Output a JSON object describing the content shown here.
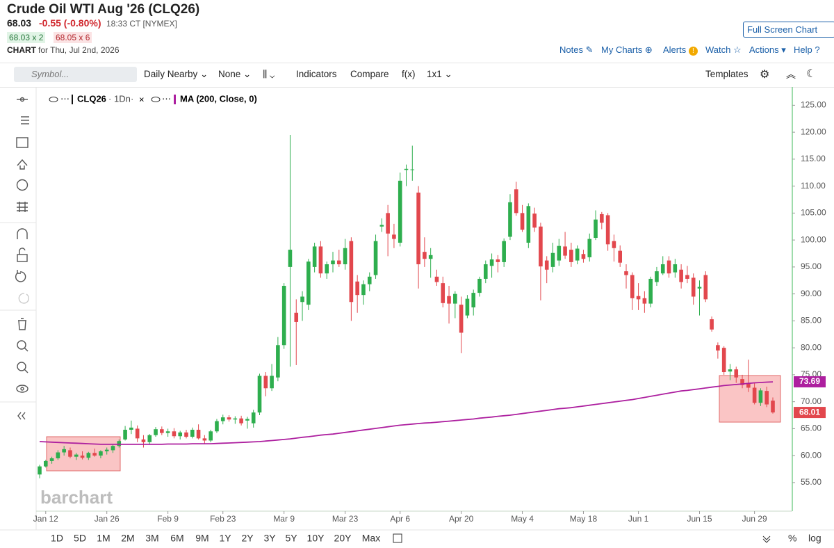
{
  "header": {
    "title": "Crude Oil WTI Aug '26 (CLQ26)",
    "last": "68.03",
    "change": "-0.55 (-0.80%)",
    "time": "18:33 CT [NYMEX]",
    "bid": "68.03 x 2",
    "ask": "68.05 x 6",
    "chart_label": "CHART",
    "chart_date": "for Thu, Jul 2nd, 2026"
  },
  "links": {
    "full_screen": "Full Screen Chart",
    "notes": "Notes",
    "my_charts": "My Charts",
    "alerts": "Alerts",
    "watch": "Watch",
    "actions": "Actions",
    "help": "Help"
  },
  "toolbar": {
    "symbol_placeholder": "Symbol...",
    "items": [
      "Daily Nearby",
      "None",
      "Indicators",
      "Compare",
      "f(x)",
      "1x1"
    ],
    "templates": "Templates"
  },
  "ranges": [
    "1D",
    "5D",
    "1M",
    "2M",
    "3M",
    "6M",
    "9M",
    "1Y",
    "2Y",
    "3Y",
    "5Y",
    "10Y",
    "20Y",
    "Max"
  ],
  "percent": "%",
  "log": "log",
  "watermark": "barchart",
  "chart_data": {
    "type": "candlestick",
    "categories": [
      "Jan 9",
      "Jan 12",
      "Jan 13",
      "Jan 14",
      "Jan 15",
      "Jan 16",
      "Jan 19",
      "Jan 20",
      "Jan 21",
      "Jan 22",
      "Jan 23",
      "Jan 26",
      "Jan 27",
      "Jan 28",
      "Jan 29",
      "Jan 30",
      "Feb 2",
      "Feb 3",
      "Feb 4",
      "Feb 5",
      "Feb 6",
      "Feb 9",
      "Feb 10",
      "Feb 11",
      "Feb 12",
      "Feb 13",
      "Feb 17",
      "Feb 18",
      "Feb 19",
      "Feb 20",
      "Feb 23",
      "Feb 24",
      "Feb 25",
      "Feb 26",
      "Feb 27",
      "Mar 2",
      "Mar 3",
      "Mar 4",
      "Mar 5",
      "Mar 6",
      "Mar 9",
      "Mar 10",
      "Mar 11",
      "Mar 12",
      "Mar 13",
      "Mar 16",
      "Mar 17",
      "Mar 18",
      "Mar 19",
      "Mar 20",
      "Mar 23",
      "Mar 24",
      "Mar 25",
      "Mar 26",
      "Mar 27",
      "Mar 30",
      "Mar 31",
      "Apr 1",
      "Apr 2",
      "Apr 6",
      "Apr 7",
      "Apr 8",
      "Apr 9",
      "Apr 10",
      "Apr 13",
      "Apr 14",
      "Apr 15",
      "Apr 16",
      "Apr 17",
      "Apr 20",
      "Apr 21",
      "Apr 22",
      "Apr 23",
      "Apr 24",
      "Apr 27",
      "Apr 28",
      "Apr 29",
      "Apr 30",
      "May 1",
      "May 4",
      "May 5",
      "May 6",
      "May 7",
      "May 8",
      "May 11",
      "May 12",
      "May 13",
      "May 14",
      "May 15",
      "May 18",
      "May 19",
      "May 20",
      "May 21",
      "May 22",
      "May 26",
      "May 27",
      "May 28",
      "May 29",
      "Jun 1",
      "Jun 2",
      "Jun 3",
      "Jun 4",
      "Jun 5",
      "Jun 8",
      "Jun 9",
      "Jun 10",
      "Jun 11",
      "Jun 12",
      "Jun 15",
      "Jun 16",
      "Jun 17",
      "Jun 18",
      "Jun 22",
      "Jun 23",
      "Jun 24",
      "Jun 25",
      "Jun 26",
      "Jun 29",
      "Jun 30",
      "Jul 1",
      "Jul 2"
    ],
    "series": [
      {
        "name": "CLQ26",
        "interval": "1Dn",
        "up_color": "#2eae4e",
        "down_color": "#e2474d",
        "open": [
          56.5,
          58,
          59,
          59.5,
          60.6,
          61,
          59.8,
          60,
          59.6,
          60.5,
          60,
          60.8,
          61,
          61.8,
          63,
          64.8,
          65,
          63,
          62.5,
          63.8,
          64.9,
          64.2,
          64.5,
          63.6,
          64.3,
          63.5,
          64.8,
          63.2,
          62.8,
          64.5,
          66.4,
          67.1,
          66.7,
          66.9,
          66.5,
          66,
          68,
          74.8,
          72.5,
          74.5,
          80.5,
          95,
          86.5,
          88.5,
          88,
          95,
          98.8,
          93.8,
          95.5,
          96.2,
          95.5,
          99.8,
          92.3,
          89.8,
          91.8,
          93.5,
          102.5,
          105,
          101,
          99.5,
          113,
          113,
          108.8,
          97.8,
          96.5,
          93.2,
          92,
          89.6,
          88.2,
          88,
          86,
          87.5,
          90.2,
          92.8,
          95.2,
          96.4,
          95.9,
          100.6,
          109.4,
          105,
          99.5,
          104.9,
          102.5,
          96.2,
          95,
          96.2,
          98.8,
          98.2,
          96.2,
          97.4,
          96.8,
          100.4,
          104.8,
          104.6,
          99.8,
          98,
          94.2,
          93.5,
          89.6,
          89.2,
          88.2,
          92.2,
          93.8,
          96.2,
          94,
          94.5,
          93.5,
          93,
          91,
          93.5,
          85.3,
          80.5,
          80,
          75.6,
          76,
          74.2,
          73.5,
          72.6,
          69.8,
          72,
          70.2
        ],
        "high": [
          58.3,
          59.2,
          59.8,
          61,
          61.8,
          61.5,
          60.5,
          60.8,
          60.7,
          61.3,
          61,
          61.5,
          62,
          63,
          65.5,
          66.5,
          65.6,
          63.8,
          64,
          65.3,
          65.4,
          65,
          65.1,
          64.6,
          64.8,
          65.2,
          65.8,
          63.8,
          64.8,
          66.8,
          67.6,
          67.5,
          67.3,
          67.4,
          67.2,
          68.5,
          75.2,
          75.5,
          77,
          82,
          92,
          119.5,
          89,
          90.5,
          96.5,
          99.5,
          99.8,
          96,
          97.8,
          98.2,
          100.2,
          100.5,
          93.5,
          92.5,
          94,
          101,
          104,
          106.5,
          103,
          112.5,
          114,
          117.5,
          110,
          100.5,
          98.5,
          94.5,
          93.2,
          91.5,
          90.5,
          89.5,
          89.8,
          90.8,
          93.2,
          96.2,
          97.5,
          97.2,
          100.3,
          108.5,
          110.8,
          106.5,
          106.8,
          106,
          103.2,
          97,
          99.5,
          100.2,
          101.5,
          99.5,
          99,
          98.2,
          101.2,
          105.5,
          105.2,
          105,
          101,
          99,
          95.5,
          94,
          92,
          90.5,
          93.2,
          95,
          97,
          97,
          96.5,
          95.5,
          95.2,
          93.8,
          92.5,
          94.2,
          85.8,
          81,
          80.3,
          77,
          76.5,
          75,
          77.8,
          73.5,
          72.5,
          72.8,
          70.8
        ],
        "low": [
          55.8,
          57.8,
          58.5,
          59.2,
          60,
          59.5,
          59.2,
          59.3,
          59.2,
          59.8,
          59.5,
          60.2,
          60.5,
          61.5,
          62.8,
          64,
          62.5,
          61.5,
          62,
          63.5,
          63.8,
          63.5,
          63.2,
          63,
          63.2,
          63.2,
          63,
          62.2,
          62.5,
          64.2,
          65.8,
          66.3,
          65.9,
          65.6,
          65,
          65.2,
          67.5,
          71,
          72,
          73.8,
          79.8,
          76.5,
          76.8,
          85,
          87,
          94,
          93,
          92.8,
          94,
          95,
          94.5,
          85,
          86.5,
          88,
          90.5,
          92.8,
          101.5,
          97,
          98.5,
          98.8,
          110,
          111,
          91,
          95,
          93,
          91.5,
          87.5,
          84.5,
          85.5,
          79,
          85.5,
          86,
          89.5,
          92,
          93,
          94,
          95,
          100,
          104.5,
          101.5,
          98.5,
          101.5,
          88.8,
          92,
          94,
          95.2,
          96.5,
          95,
          95.5,
          95.8,
          96,
          100,
          102,
          98,
          96,
          95,
          91,
          87,
          87,
          86.5,
          87.5,
          91.5,
          93.5,
          93,
          93,
          91,
          92,
          88,
          86,
          88.5,
          83,
          78,
          75,
          74,
          73.5,
          72.5,
          71.8,
          69.5,
          69.2,
          69,
          67.8
        ],
        "close": [
          58,
          59,
          59.5,
          60.6,
          61.2,
          59.8,
          60.2,
          59.6,
          60.5,
          60,
          60.8,
          61.1,
          61.8,
          62.7,
          64.8,
          65.2,
          63.2,
          62.5,
          63.8,
          64.9,
          64.2,
          64.5,
          63.6,
          64.3,
          63.5,
          64.8,
          63.2,
          62.8,
          64.5,
          66.4,
          67.1,
          66.7,
          66.9,
          66,
          66.8,
          68,
          74.8,
          72.5,
          74.8,
          80.5,
          91.5,
          98.2,
          84.8,
          89.5,
          96,
          98.8,
          93.8,
          95.5,
          96.2,
          95.5,
          98.5,
          88.5,
          89.8,
          91.8,
          93.2,
          99.8,
          102.8,
          101.2,
          100.2,
          111,
          113.2,
          113.1,
          95.5,
          96.5,
          97.2,
          92.2,
          88.3,
          88.2,
          90,
          82.8,
          89.1,
          90.2,
          92.8,
          95.5,
          96.4,
          95.9,
          99.8,
          107,
          105,
          101.9,
          106.3,
          102.3,
          95.1,
          94.5,
          97.6,
          98.9,
          97.1,
          95.9,
          98.4,
          96.5,
          100.2,
          103.8,
          103.2,
          99.2,
          98.5,
          95.8,
          93.5,
          89.2,
          89,
          88.2,
          92.8,
          94.2,
          95.5,
          93.8,
          95.5,
          92.2,
          92.8,
          89.5,
          91.3,
          89,
          83.4,
          79.5,
          75.5,
          76,
          74.5,
          73.1,
          72.6,
          69.8,
          72.1,
          69.5,
          68.01
        ]
      }
    ],
    "indicators": [
      {
        "name": "MA (200, Close, 0)",
        "color": "#ad1f9f",
        "values": [
          62.6,
          62.55,
          62.5,
          62.45,
          62.4,
          62.35,
          62.3,
          62.25,
          62.2,
          62.15,
          62.1,
          62.1,
          62.1,
          62.1,
          62.1,
          62.1,
          62.1,
          62.1,
          62.1,
          62.1,
          62.1,
          62.15,
          62.15,
          62.15,
          62.15,
          62.2,
          62.2,
          62.2,
          62.2,
          62.25,
          62.3,
          62.35,
          62.4,
          62.45,
          62.5,
          62.55,
          62.6,
          62.7,
          62.8,
          62.9,
          63.0,
          63.1,
          63.25,
          63.4,
          63.5,
          63.65,
          63.8,
          63.9,
          64.0,
          64.15,
          64.3,
          64.45,
          64.6,
          64.75,
          64.9,
          65.05,
          65.2,
          65.35,
          65.5,
          65.65,
          65.75,
          65.85,
          65.95,
          66.05,
          66.1,
          66.2,
          66.3,
          66.4,
          66.5,
          66.6,
          66.7,
          66.8,
          66.95,
          67.05,
          67.15,
          67.3,
          67.4,
          67.5,
          67.65,
          67.8,
          67.95,
          68.1,
          68.25,
          68.4,
          68.55,
          68.7,
          68.8,
          68.9,
          69.05,
          69.2,
          69.35,
          69.5,
          69.65,
          69.8,
          69.95,
          70.1,
          70.25,
          70.4,
          70.6,
          70.8,
          71.0,
          71.2,
          71.4,
          71.6,
          71.8,
          72.0,
          72.1,
          72.25,
          72.4,
          72.55,
          72.7,
          72.85,
          73.0,
          73.1,
          73.2,
          73.3,
          73.4,
          73.5,
          73.57,
          73.63,
          73.69
        ]
      }
    ],
    "ylim": [
      49.7,
      128.4
    ],
    "yticks": [
      {
        "value": 55,
        "label": "55.00"
      },
      {
        "value": 60,
        "label": "60.00"
      },
      {
        "value": 65,
        "label": "65.00"
      },
      {
        "value": 70,
        "label": "70.00"
      },
      {
        "value": 75,
        "label": "75.00"
      },
      {
        "value": 80,
        "label": "80.00"
      },
      {
        "value": 85,
        "label": "85.00"
      },
      {
        "value": 90,
        "label": "90.00"
      },
      {
        "value": 95,
        "label": "95.00"
      },
      {
        "value": 100,
        "label": "100.00"
      },
      {
        "value": 105,
        "label": "105.00"
      },
      {
        "value": 110,
        "label": "110.00"
      },
      {
        "value": 115,
        "label": "115.00"
      },
      {
        "value": 120,
        "label": "120.00"
      },
      {
        "value": 125,
        "label": "125.00"
      }
    ],
    "xticks": [
      "Jan 12",
      "Jan 26",
      "Feb 9",
      "Feb 23",
      "Mar 9",
      "Mar 23",
      "Apr 6",
      "Apr 20",
      "May 4",
      "May 18",
      "Jun 1",
      "Jun 15",
      "Jun 29"
    ],
    "grid": false
  }
}
